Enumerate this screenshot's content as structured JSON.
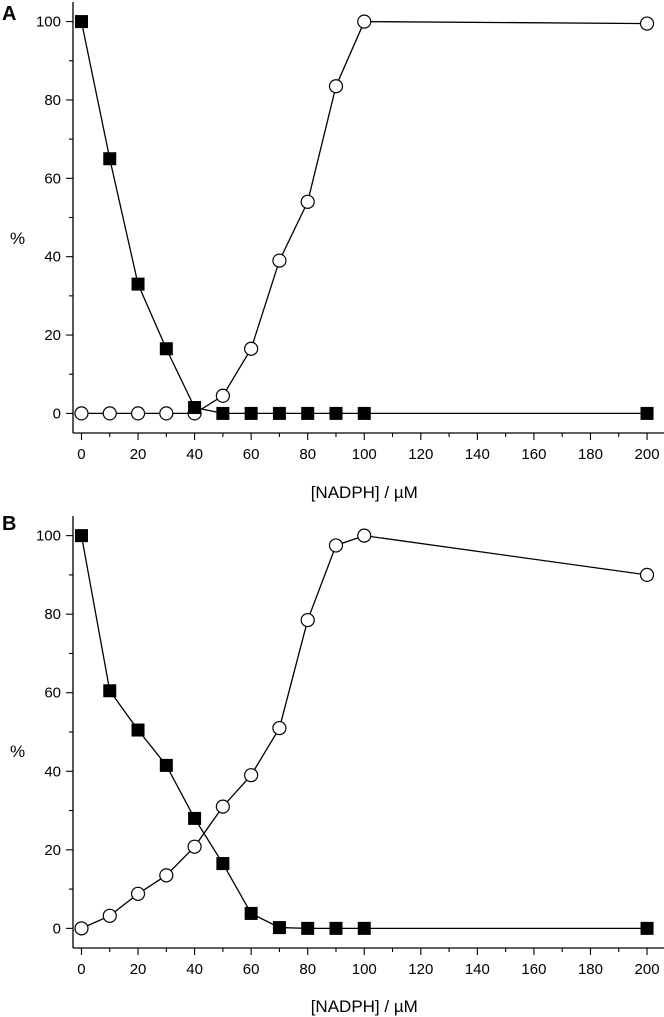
{
  "chart_data": [
    {
      "type": "line",
      "panel_label": "A",
      "xlabel": "[NADPH] / µM",
      "ylabel": "%",
      "xlim": [
        -3,
        206
      ],
      "ylim": [
        -5,
        105
      ],
      "x_ticks": [
        0,
        20,
        40,
        60,
        80,
        100,
        120,
        140,
        160,
        180,
        200
      ],
      "y_ticks": [
        0,
        20,
        40,
        60,
        80,
        100
      ],
      "series": [
        {
          "marker": "filled-square",
          "color": "#000000",
          "x": [
            0,
            10,
            20,
            30,
            40,
            50,
            60,
            70,
            80,
            90,
            100,
            200
          ],
          "y": [
            100,
            65,
            33,
            16.5,
            1.5,
            0,
            0,
            0,
            0,
            0,
            0,
            0
          ]
        },
        {
          "marker": "open-circle",
          "color": "#000000",
          "x": [
            0,
            10,
            20,
            30,
            40,
            50,
            60,
            70,
            80,
            90,
            100,
            200
          ],
          "y": [
            0,
            0,
            0,
            0,
            0,
            4.5,
            16.5,
            39,
            54,
            83.5,
            100,
            99.5
          ]
        }
      ]
    },
    {
      "type": "line",
      "panel_label": "B",
      "xlabel": "[NADPH] / µM",
      "ylabel": "%",
      "xlim": [
        -3,
        206
      ],
      "ylim": [
        -5,
        105
      ],
      "x_ticks": [
        0,
        20,
        40,
        60,
        80,
        100,
        120,
        140,
        160,
        180,
        200
      ],
      "y_ticks": [
        0,
        20,
        40,
        60,
        80,
        100
      ],
      "series": [
        {
          "marker": "filled-square",
          "color": "#000000",
          "x": [
            0,
            10,
            20,
            30,
            40,
            50,
            60,
            70,
            80,
            90,
            100,
            200
          ],
          "y": [
            100,
            60.5,
            50.5,
            41.5,
            28,
            16.5,
            3.8,
            0.2,
            0,
            0,
            0,
            0
          ]
        },
        {
          "marker": "open-circle",
          "color": "#000000",
          "x": [
            0,
            10,
            20,
            30,
            40,
            50,
            60,
            70,
            80,
            90,
            100,
            200
          ],
          "y": [
            0,
            3.2,
            8.8,
            13.5,
            20.8,
            31,
            39,
            51,
            78.5,
            97.5,
            100,
            90
          ]
        }
      ]
    }
  ]
}
